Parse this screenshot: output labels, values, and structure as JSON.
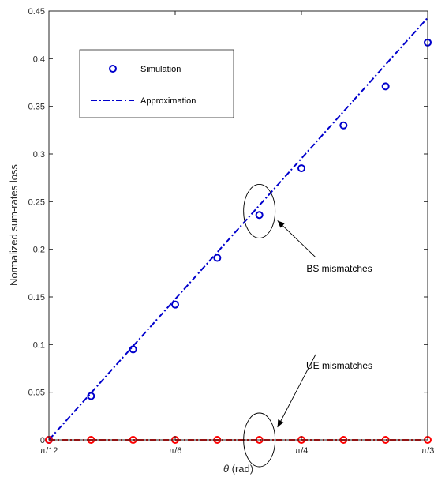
{
  "chart_data": {
    "type": "scatter",
    "title": "",
    "xlabel": {
      "symbol": "θ",
      "unit": " (rad)"
    },
    "ylabel": "Normalized sum-rates loss",
    "xlim": [
      15,
      60
    ],
    "ylim": [
      0,
      0.45
    ],
    "x_unit": "degrees",
    "x_ticks": [
      {
        "value": 15,
        "label": "π/12"
      },
      {
        "value": 30,
        "label": "π/6"
      },
      {
        "value": 45,
        "label": "π/4"
      },
      {
        "value": 60,
        "label": "π/3"
      }
    ],
    "y_ticks": [
      0,
      0.05,
      0.1,
      0.15,
      0.2,
      0.25,
      0.3,
      0.35,
      0.4,
      0.45
    ],
    "y_tick_labels": [
      "0",
      "0.05",
      "0.1",
      "0.15",
      "0.2",
      "0.25",
      "0.3",
      "0.35",
      "0.4",
      "0.45"
    ],
    "grid": false,
    "legend": {
      "position": "top-left",
      "entries": [
        {
          "label": "Simulation",
          "style": "circle-marker"
        },
        {
          "label": "Approximation",
          "style": "dash-dot-line"
        }
      ]
    },
    "series": [
      {
        "group": "BS",
        "kind": "simulation",
        "color": "#0000cc",
        "x": [
          15,
          20,
          25,
          30,
          35,
          40,
          45,
          50,
          55,
          60
        ],
        "y": [
          0,
          0.046,
          0.095,
          0.142,
          0.191,
          0.236,
          0.285,
          0.33,
          0.371,
          0.417
        ]
      },
      {
        "group": "BS",
        "kind": "approximation",
        "color": "#0000cc",
        "x": [
          15,
          60
        ],
        "y": [
          0,
          0.443
        ]
      },
      {
        "group": "UE",
        "kind": "simulation",
        "color": "#ff0000",
        "x": [
          15,
          20,
          25,
          30,
          35,
          40,
          45,
          50,
          55,
          60
        ],
        "y": [
          0,
          0,
          0,
          0,
          0,
          0,
          0,
          0,
          0,
          0
        ]
      },
      {
        "group": "UE",
        "kind": "approximation",
        "color": "#ff0000",
        "x": [
          15,
          60
        ],
        "y": [
          0,
          0
        ]
      }
    ],
    "annotations": [
      {
        "text": "BS mismatches",
        "ellipse_center": [
          40,
          0.24
        ],
        "label_at": [
          49.5,
          0.18
        ]
      },
      {
        "text": "UE mismatches",
        "ellipse_center": [
          40,
          0.0
        ],
        "label_at": [
          49.5,
          0.078
        ]
      }
    ]
  }
}
